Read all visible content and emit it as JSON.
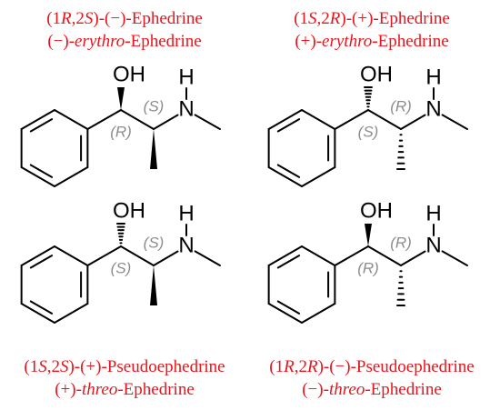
{
  "molecules": [
    {
      "name": [
        "(1",
        "R",
        ",2",
        "S",
        ")-(−)-Ephedrine"
      ],
      "alt_name": [
        "(−)-",
        "erythro",
        "-Ephedrine"
      ],
      "oh": "OH",
      "n": "N",
      "h": "H",
      "c1_label": "(R)",
      "c2_label": "(S)"
    },
    {
      "name": [
        "(1",
        "S",
        ",2",
        "R",
        ")-(+)-Ephedrine"
      ],
      "alt_name": [
        "(+)-",
        "erythro",
        "-Ephedrine"
      ],
      "oh": "OH",
      "n": "N",
      "h": "H",
      "c1_label": "(S)",
      "c2_label": "(R)"
    },
    {
      "name": [
        "(1",
        "S",
        ",2",
        "S",
        ")-(+)-Pseudoephedrine"
      ],
      "alt_name": [
        "(+)-",
        "threo",
        "-Ephedrine"
      ],
      "oh": "OH",
      "n": "N",
      "h": "H",
      "c1_label": "(S)",
      "c2_label": "(S)"
    },
    {
      "name": [
        "(1",
        "R",
        ",2",
        "R",
        ")-(−)-Pseudoephedrine"
      ],
      "alt_name": [
        "(−)-",
        "threo",
        "-Ephedrine"
      ],
      "oh": "OH",
      "n": "N",
      "h": "H",
      "c1_label": "(R)",
      "c2_label": "(R)"
    }
  ]
}
